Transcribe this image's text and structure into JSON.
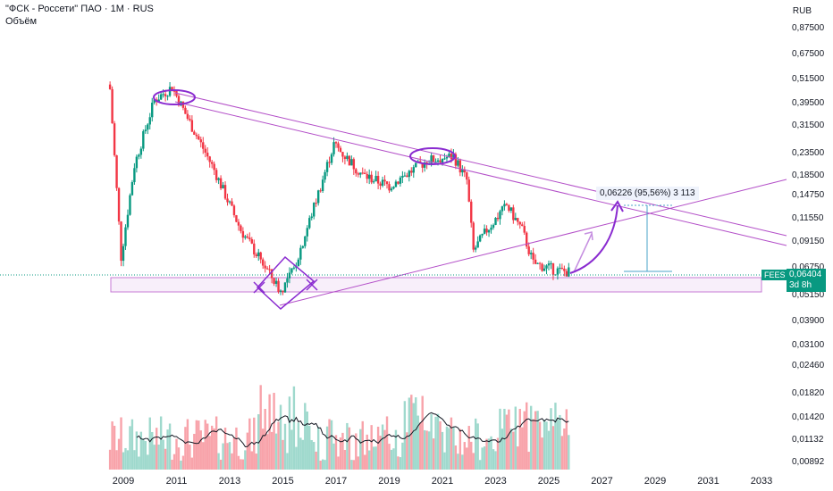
{
  "header": {
    "title": "\"ФСК - Россети\" ПАО · 1М · RUS",
    "volume_label": "Объём",
    "currency": "RUB"
  },
  "badges": {
    "ticker": "FEES",
    "price": "0,06404",
    "countdown": "3d 8h"
  },
  "measure": {
    "label": "0,06226 (95,56%) 3 113"
  },
  "colors": {
    "up": "#089981",
    "down": "#f23645",
    "drawing": "#a020c8",
    "trendline": "#b34fc8",
    "volume_up": "#9fd9cd",
    "volume_down": "#f8a3aa",
    "measure": "#4aa3c8"
  },
  "chart_data": {
    "type": "candlestick",
    "y_scale": "log",
    "ylim": [
      0.0512,
      0.875
    ],
    "y_ticks": [
      "0,87500",
      "0,67500",
      "0,51500",
      "0,39500",
      "0,31500",
      "0,23500",
      "0,18500",
      "0,14750",
      "0,11550",
      "0,09150",
      "0,06750",
      "0,05150",
      "0,03900",
      "0,03100",
      "0,02460",
      "0,01820",
      "0,01420",
      "0,01132",
      "0,00892"
    ],
    "x_ticks": [
      "2009",
      "2011",
      "2013",
      "2015",
      "2017",
      "2019",
      "2021",
      "2023",
      "2025",
      "2027",
      "2029",
      "2031",
      "2033"
    ],
    "series_key_points": [
      {
        "date": "2008-07",
        "close": 0.45
      },
      {
        "date": "2008-12",
        "close": 0.075
      },
      {
        "date": "2009-06",
        "close": 0.2
      },
      {
        "date": "2010-03",
        "close": 0.4
      },
      {
        "date": "2010-11",
        "close": 0.46
      },
      {
        "date": "2011-06",
        "close": 0.33
      },
      {
        "date": "2012-06",
        "close": 0.19
      },
      {
        "date": "2013-06",
        "close": 0.1
      },
      {
        "date": "2014-06",
        "close": 0.065
      },
      {
        "date": "2014-12",
        "close": 0.052
      },
      {
        "date": "2015-06",
        "close": 0.066
      },
      {
        "date": "2016-06",
        "close": 0.16
      },
      {
        "date": "2016-12",
        "close": 0.25
      },
      {
        "date": "2018-01",
        "close": 0.18
      },
      {
        "date": "2019-01",
        "close": 0.16
      },
      {
        "date": "2020-06",
        "close": 0.21
      },
      {
        "date": "2021-06",
        "close": 0.22
      },
      {
        "date": "2021-12",
        "close": 0.17
      },
      {
        "date": "2022-03",
        "close": 0.08
      },
      {
        "date": "2022-09",
        "close": 0.1
      },
      {
        "date": "2023-06",
        "close": 0.13
      },
      {
        "date": "2024-01",
        "close": 0.1
      },
      {
        "date": "2024-06",
        "close": 0.07
      },
      {
        "date": "2025-06",
        "close": 0.0645
      },
      {
        "date": "2025-10",
        "close": 0.06404
      }
    ],
    "volume_scale": "relative"
  }
}
